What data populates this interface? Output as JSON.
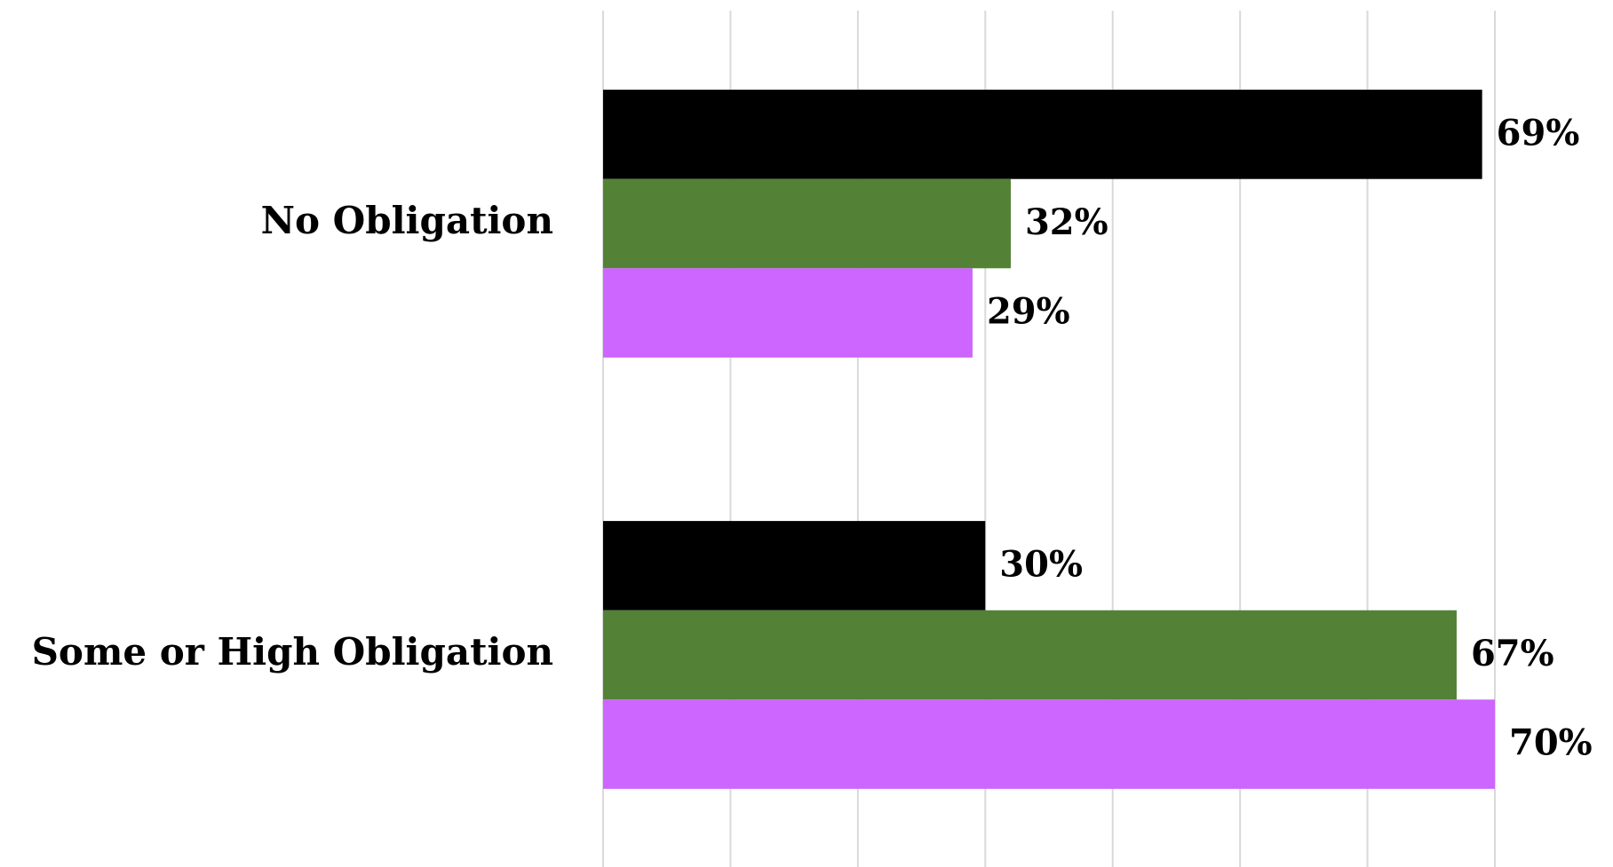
{
  "chart_data": {
    "type": "bar",
    "orientation": "horizontal",
    "categories": [
      "No Obligation",
      "Some or High Obligation"
    ],
    "series": [
      {
        "color": "#000000",
        "values": [
          69,
          30
        ],
        "value_labels": [
          "69%",
          "30%"
        ]
      },
      {
        "color": "#538135",
        "values": [
          32,
          67
        ],
        "value_labels": [
          "32%",
          "67%"
        ]
      },
      {
        "color": "#cc66ff",
        "values": [
          29,
          70
        ],
        "value_labels": [
          "29%",
          "70%"
        ]
      }
    ],
    "xlim": [
      0,
      70
    ],
    "xticks": [
      0,
      10,
      20,
      30,
      40,
      50,
      60,
      70
    ],
    "grid": true
  }
}
